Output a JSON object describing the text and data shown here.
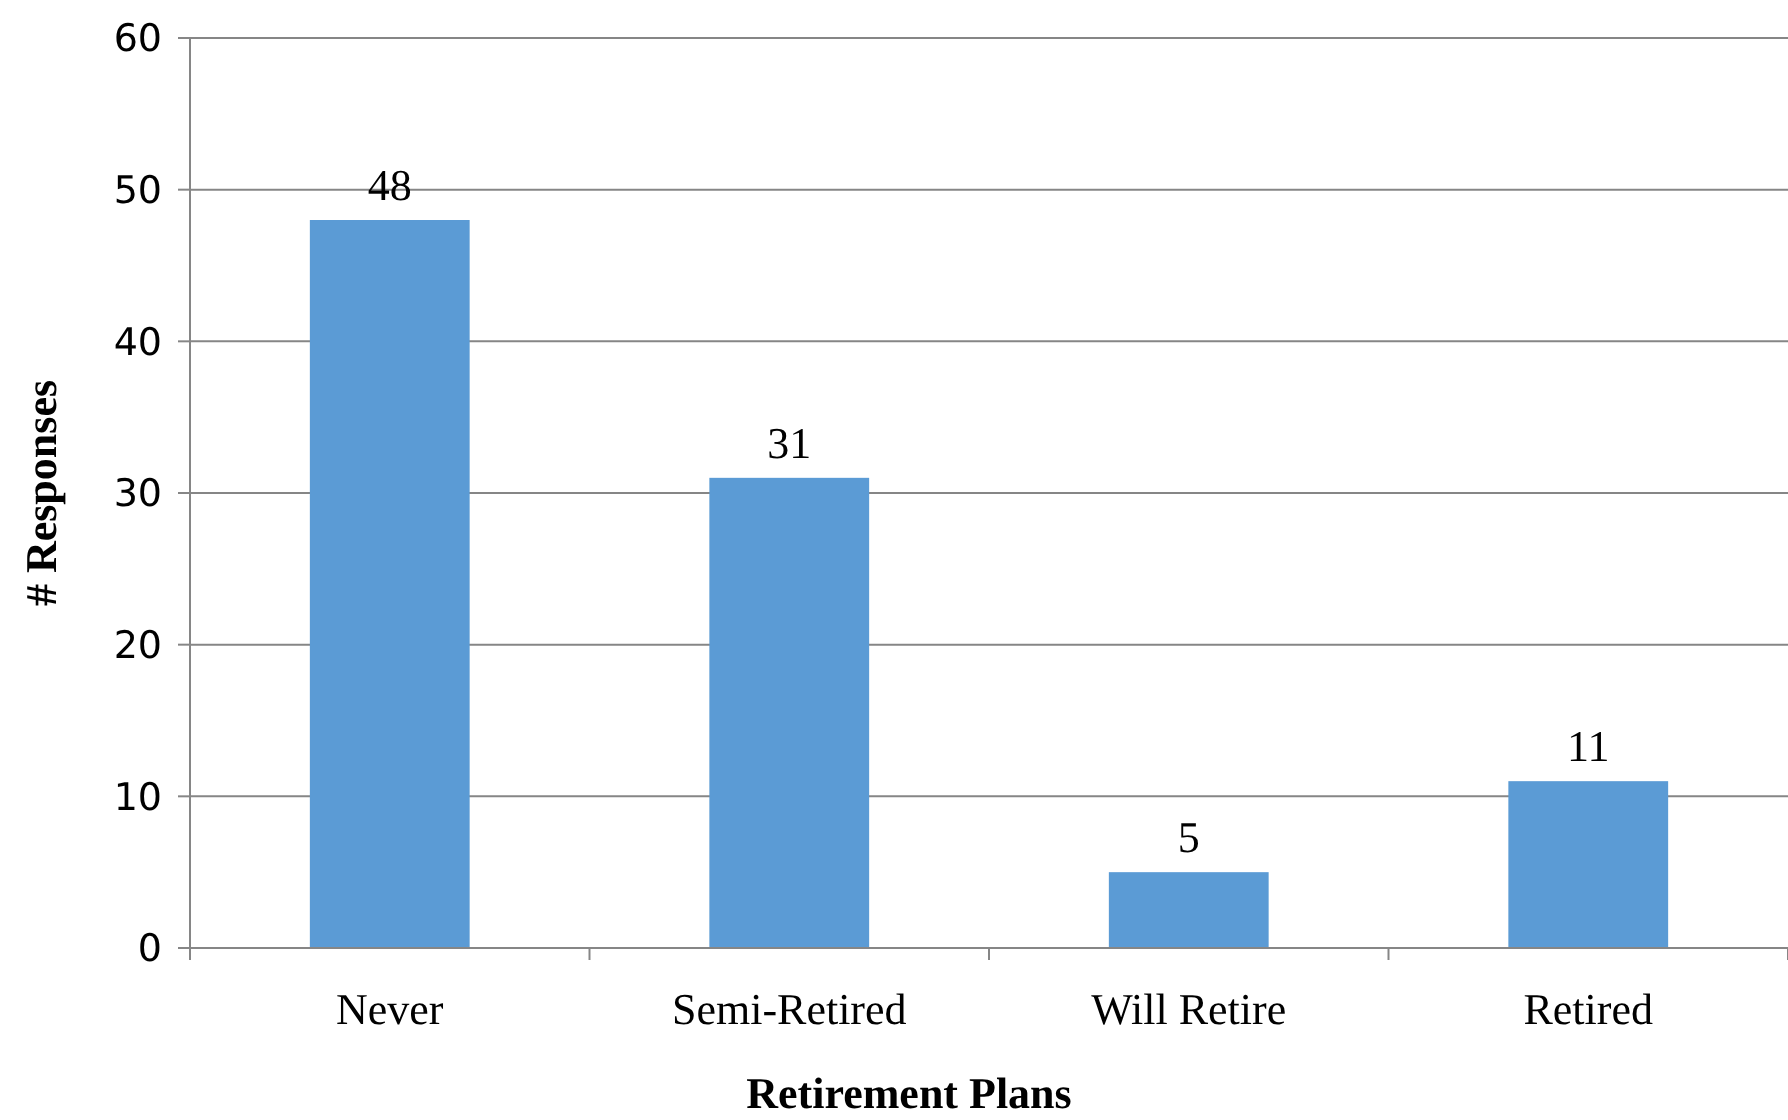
{
  "chart_data": {
    "type": "bar",
    "xlabel": "Retirement Plans",
    "ylabel": "# Responses",
    "categories": [
      "Never",
      "Semi-Retired",
      "Will Retire",
      "Retired"
    ],
    "values": [
      48,
      31,
      5,
      11
    ],
    "color": "#5b9bd5",
    "ylim": [
      0,
      60
    ],
    "yticks": [
      0,
      10,
      20,
      30,
      40,
      50,
      60
    ],
    "grid": "y",
    "data_labels": true
  }
}
